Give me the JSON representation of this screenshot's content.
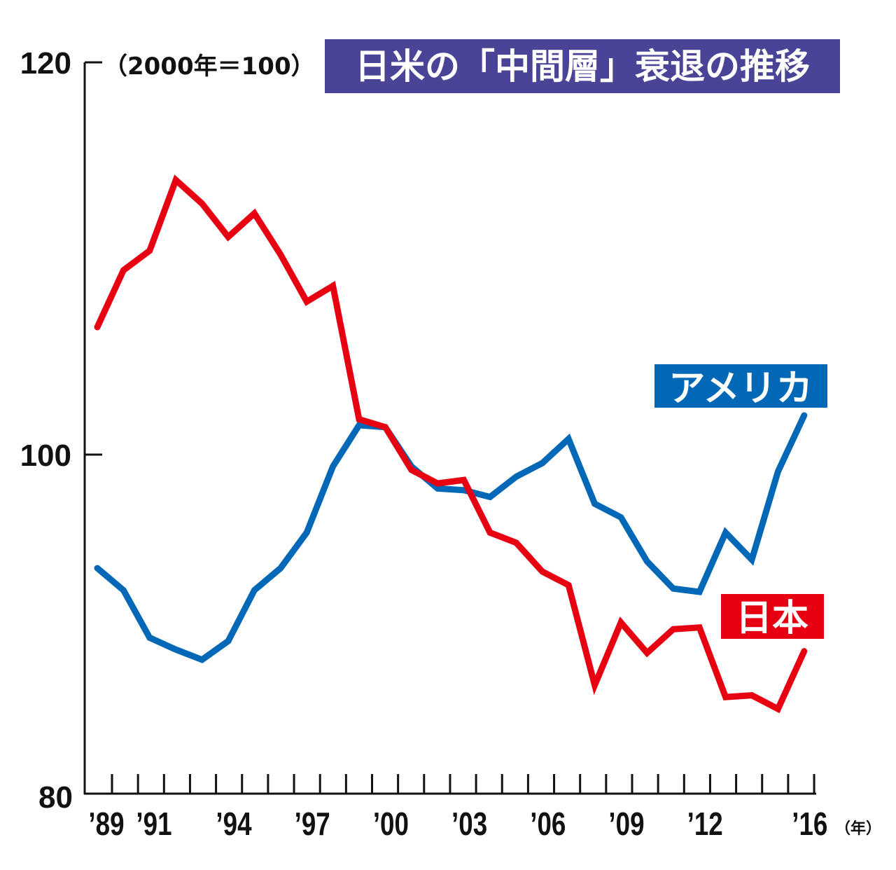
{
  "chart_data": {
    "type": "line",
    "title": "日米の「中間層」衰退の推移",
    "unit_note": "（2000年＝100）",
    "x_unit": "（年）",
    "x": [
      1989,
      1990,
      1991,
      1992,
      1993,
      1994,
      1995,
      1996,
      1997,
      1998,
      1999,
      2000,
      2001,
      2002,
      2003,
      2004,
      2005,
      2006,
      2007,
      2008,
      2009,
      2010,
      2011,
      2012,
      2013,
      2014,
      2015,
      2016
    ],
    "x_tick_labels": [
      {
        "year": 1989,
        "label": "’89"
      },
      {
        "year": 1991,
        "label": "’91"
      },
      {
        "year": 1994,
        "label": "’94"
      },
      {
        "year": 1997,
        "label": "’97"
      },
      {
        "year": 2000,
        "label": "’00"
      },
      {
        "year": 2003,
        "label": "’03"
      },
      {
        "year": 2006,
        "label": "’06"
      },
      {
        "year": 2009,
        "label": "’09"
      },
      {
        "year": 2012,
        "label": "’12"
      },
      {
        "year": 2016,
        "label": "’16"
      }
    ],
    "y_ticks": [
      80,
      100,
      120
    ],
    "ylim": [
      80,
      120
    ],
    "grid": false,
    "series": [
      {
        "name": "アメリカ",
        "color": "#0068b7",
        "values": [
          93.3,
          92.0,
          89.2,
          88.5,
          87.9,
          89.0,
          92.0,
          93.3,
          95.4,
          99.3,
          101.5,
          101.4,
          99.3,
          98.0,
          97.9,
          97.5,
          98.7,
          99.5,
          100.8,
          97.1,
          96.3,
          93.7,
          92.1,
          91.9,
          95.4,
          93.8,
          99.0,
          102.0
        ]
      },
      {
        "name": "日本",
        "color": "#e60012",
        "values": [
          106.5,
          109.4,
          110.4,
          114.0,
          112.8,
          111.1,
          112.3,
          110.2,
          107.8,
          108.6,
          101.8,
          101.4,
          99.1,
          98.3,
          98.5,
          95.4,
          94.8,
          93.1,
          92.3,
          86.4,
          90.1,
          88.3,
          89.7,
          89.8,
          85.7,
          85.8,
          85.0,
          88.4
        ]
      }
    ],
    "title_bg_color": "#4a4496"
  }
}
